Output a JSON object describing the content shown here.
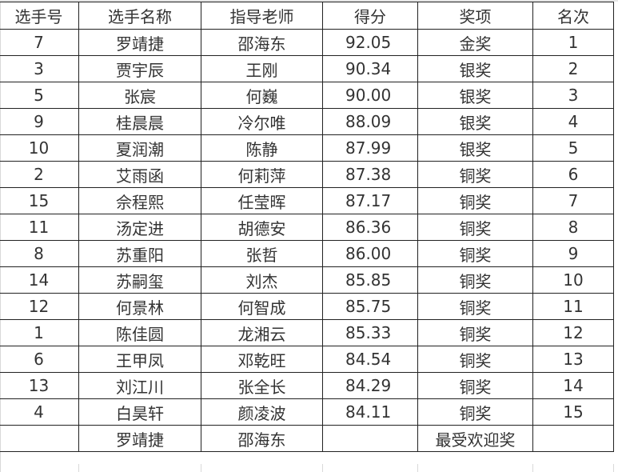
{
  "headers": [
    "选手号",
    "选手名称",
    "指导老师",
    "得分",
    "奖项",
    "名次"
  ],
  "rows": [
    [
      "7",
      "罗靖捷",
      "邵海东",
      "92.05",
      "金奖",
      "1"
    ],
    [
      "3",
      "贾宇辰",
      "王刚",
      "90.34",
      "银奖",
      "2"
    ],
    [
      "5",
      "张宸",
      "何巍",
      "90.00",
      "银奖",
      "3"
    ],
    [
      "9",
      "桂晨晨",
      "冷尔唯",
      "88.09",
      "银奖",
      "4"
    ],
    [
      "10",
      "夏润潮",
      "陈静",
      "87.99",
      "银奖",
      "5"
    ],
    [
      "2",
      "艾雨函",
      "何莉萍",
      "87.38",
      "铜奖",
      "6"
    ],
    [
      "15",
      "佘程熙",
      "任莹晖",
      "87.17",
      "铜奖",
      "7"
    ],
    [
      "11",
      "汤定进",
      "胡德安",
      "86.36",
      "铜奖",
      "8"
    ],
    [
      "8",
      "苏重阳",
      "张哲",
      "86.00",
      "铜奖",
      "9"
    ],
    [
      "14",
      "苏嗣玺",
      "刘杰",
      "85.85",
      "铜奖",
      "10"
    ],
    [
      "12",
      "何景林",
      "何智成",
      "85.75",
      "铜奖",
      "11"
    ],
    [
      "1",
      "陈佳圆",
      "龙湘云",
      "85.33",
      "铜奖",
      "12"
    ],
    [
      "6",
      "王甲凤",
      "邓乾旺",
      "84.54",
      "铜奖",
      "13"
    ],
    [
      "13",
      "刘江川",
      "张全长",
      "84.29",
      "铜奖",
      "14"
    ],
    [
      "4",
      "白昊轩",
      "颜凌波",
      "84.11",
      "铜奖",
      "15"
    ],
    [
      "",
      "罗靖捷",
      "邵海东",
      "",
      "最受欢迎奖",
      ""
    ]
  ]
}
